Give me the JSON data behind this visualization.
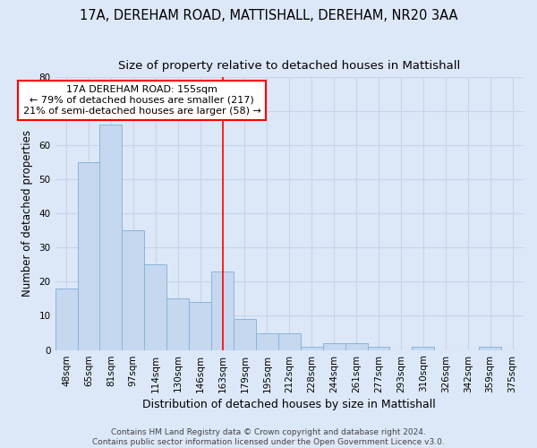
{
  "title1": "17A, DEREHAM ROAD, MATTISHALL, DEREHAM, NR20 3AA",
  "title2": "Size of property relative to detached houses in Mattishall",
  "xlabel": "Distribution of detached houses by size in Mattishall",
  "ylabel": "Number of detached properties",
  "categories": [
    "48sqm",
    "65sqm",
    "81sqm",
    "97sqm",
    "114sqm",
    "130sqm",
    "146sqm",
    "163sqm",
    "179sqm",
    "195sqm",
    "212sqm",
    "228sqm",
    "244sqm",
    "261sqm",
    "277sqm",
    "293sqm",
    "310sqm",
    "326sqm",
    "342sqm",
    "359sqm",
    "375sqm"
  ],
  "values": [
    18,
    55,
    66,
    35,
    25,
    15,
    14,
    23,
    9,
    5,
    5,
    1,
    2,
    2,
    1,
    0,
    1,
    0,
    0,
    1,
    0
  ],
  "bar_color": "#c5d8f0",
  "bar_edge_color": "#89b4d9",
  "red_line_index": 7,
  "annotation_line1": "17A DEREHAM ROAD: 155sqm",
  "annotation_line2": "← 79% of detached houses are smaller (217)",
  "annotation_line3": "21% of semi-detached houses are larger (58) →",
  "annotation_box_color": "white",
  "annotation_box_edge": "red",
  "ylim": [
    0,
    80
  ],
  "yticks": [
    0,
    10,
    20,
    30,
    40,
    50,
    60,
    70,
    80
  ],
  "grid_color": "#c8d4e8",
  "bg_color": "#dce8f8",
  "fig_bg_color": "#dce8f8",
  "footnote": "Contains HM Land Registry data © Crown copyright and database right 2024.\nContains public sector information licensed under the Open Government Licence v3.0.",
  "title1_fontsize": 10.5,
  "title2_fontsize": 9.5,
  "xlabel_fontsize": 9,
  "ylabel_fontsize": 8.5,
  "tick_fontsize": 7.5,
  "annot_fontsize": 8,
  "footnote_fontsize": 6.5
}
